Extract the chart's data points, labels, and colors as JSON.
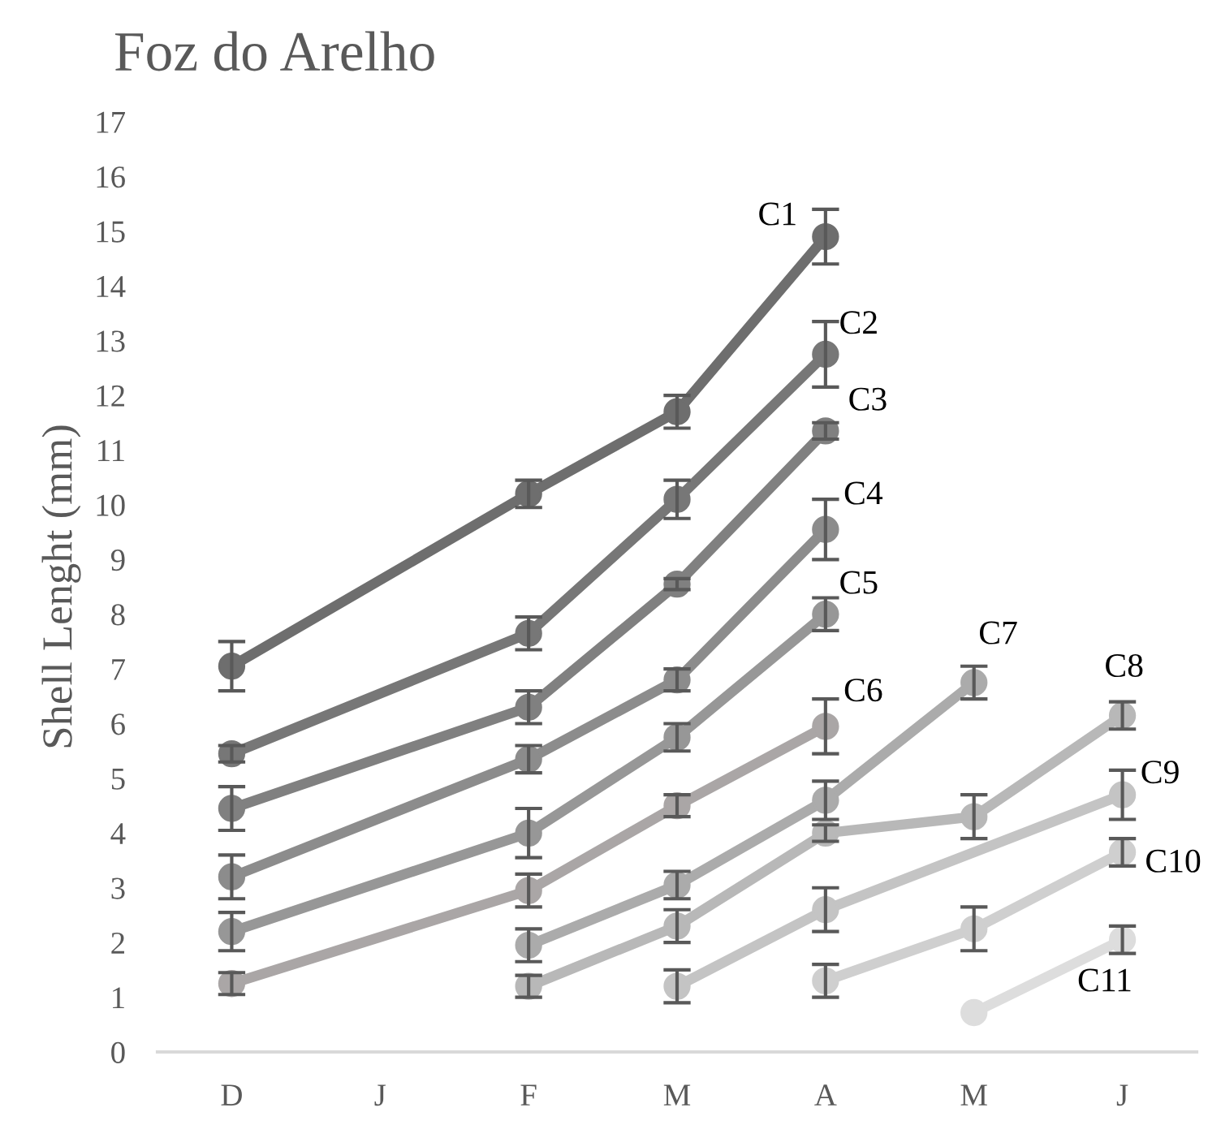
{
  "chart_data": {
    "type": "line",
    "title": "Foz do Arelho",
    "ylabel": "Shell Lenght (mm)",
    "categories": [
      "D",
      "J",
      "F",
      "M",
      "A",
      "M",
      "J"
    ],
    "ylim": [
      0,
      17
    ],
    "yticks": [
      0,
      1,
      2,
      3,
      4,
      5,
      6,
      7,
      8,
      9,
      10,
      11,
      12,
      13,
      14,
      15,
      16,
      17
    ],
    "grid": false,
    "legend": false,
    "marker": "circle",
    "line_style": "solid",
    "series": [
      {
        "name": "C1",
        "color": "#6e6e6e",
        "values": [
          7.05,
          null,
          10.2,
          11.7,
          14.9,
          null,
          null
        ],
        "errors": [
          0.45,
          null,
          0.25,
          0.3,
          0.5,
          null,
          null
        ]
      },
      {
        "name": "C2",
        "color": "#777777",
        "values": [
          5.45,
          null,
          7.65,
          10.1,
          12.75,
          null,
          null
        ],
        "errors": [
          0.15,
          null,
          0.3,
          0.35,
          0.6,
          null,
          null
        ]
      },
      {
        "name": "C3",
        "color": "#808080",
        "values": [
          4.45,
          null,
          6.3,
          8.55,
          11.35,
          null,
          null
        ],
        "errors": [
          0.4,
          null,
          0.3,
          0.1,
          0.15,
          null,
          null
        ]
      },
      {
        "name": "C4",
        "color": "#8c8c8c",
        "values": [
          3.2,
          null,
          5.35,
          6.8,
          9.55,
          null,
          null
        ],
        "errors": [
          0.4,
          null,
          0.25,
          0.2,
          0.55,
          null,
          null
        ]
      },
      {
        "name": "C5",
        "color": "#979797",
        "values": [
          2.2,
          null,
          4.0,
          5.75,
          8.0,
          null,
          null
        ],
        "errors": [
          0.35,
          null,
          0.45,
          0.25,
          0.3,
          null,
          null
        ]
      },
      {
        "name": "C6",
        "color": "#aaa6a6",
        "values": [
          1.25,
          null,
          2.95,
          4.5,
          5.95,
          null,
          null
        ],
        "errors": [
          0.2,
          null,
          0.3,
          0.2,
          0.5,
          null,
          null
        ]
      },
      {
        "name": "C7",
        "color": "#ababab",
        "values": [
          null,
          null,
          1.95,
          3.05,
          4.6,
          6.75,
          null
        ],
        "errors": [
          null,
          null,
          0.3,
          0.25,
          0.35,
          0.3,
          null
        ]
      },
      {
        "name": "C8",
        "color": "#b8b8b8",
        "values": [
          null,
          null,
          1.2,
          2.3,
          4.0,
          4.3,
          6.15
        ],
        "errors": [
          null,
          null,
          0.2,
          0.3,
          0.15,
          0.4,
          0.25
        ]
      },
      {
        "name": "C9",
        "color": "#c4c4c4",
        "values": [
          null,
          null,
          null,
          1.2,
          2.6,
          null,
          4.7
        ],
        "errors": [
          null,
          null,
          null,
          0.3,
          0.4,
          null,
          0.45
        ]
      },
      {
        "name": "C10",
        "color": "#cfcfcf",
        "values": [
          null,
          null,
          null,
          null,
          1.3,
          2.25,
          3.65
        ],
        "errors": [
          null,
          null,
          null,
          null,
          0.3,
          0.4,
          0.25
        ]
      },
      {
        "name": "C11",
        "color": "#dddddd",
        "values": [
          null,
          null,
          null,
          null,
          null,
          0.72,
          2.05
        ],
        "errors": [
          null,
          null,
          null,
          null,
          null,
          null,
          0.25
        ]
      }
    ]
  }
}
